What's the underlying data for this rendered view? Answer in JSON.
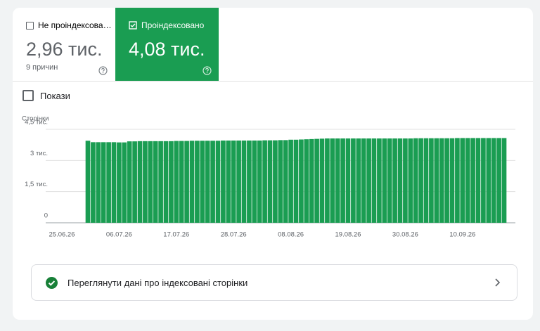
{
  "tabs": [
    {
      "label": "Не проіндексова…",
      "value": "2,96 тис.",
      "subtitle": "9 причин"
    },
    {
      "label": "Проіндексовано",
      "value": "4,08 тис."
    }
  ],
  "toggle": "Покази",
  "link": "Переглянути дані про індексовані сторінки",
  "chart_data": {
    "type": "bar",
    "y_label": "Сторінки",
    "color": "#1a9d52",
    "grid": true,
    "categories": [
      "25.06.26",
      null,
      null,
      null,
      null,
      null,
      null,
      null,
      null,
      null,
      null,
      "06.07.26",
      null,
      null,
      null,
      null,
      null,
      null,
      null,
      null,
      null,
      null,
      "17.07.26",
      null,
      null,
      null,
      null,
      null,
      null,
      null,
      null,
      null,
      null,
      "28.07.26",
      null,
      null,
      null,
      null,
      null,
      null,
      null,
      null,
      null,
      null,
      "08.08.26",
      null,
      null,
      null,
      null,
      null,
      null,
      null,
      null,
      null,
      null,
      "19.08.26",
      null,
      null,
      null,
      null,
      null,
      null,
      null,
      null,
      null,
      null,
      "30.08.26",
      null,
      null,
      null,
      null,
      null,
      null,
      null,
      null,
      null,
      null,
      "10.09.26",
      null,
      null,
      null,
      null,
      null,
      null,
      null,
      null
    ],
    "values": [
      null,
      null,
      null,
      null,
      null,
      3950,
      3880,
      3880,
      3880,
      3880,
      3880,
      3870,
      3870,
      3920,
      3920,
      3930,
      3930,
      3930,
      3930,
      3930,
      3930,
      3930,
      3940,
      3940,
      3940,
      3950,
      3950,
      3950,
      3950,
      3950,
      3950,
      3960,
      3960,
      3960,
      3960,
      3960,
      3960,
      3960,
      3960,
      3970,
      3970,
      3970,
      3980,
      3980,
      4000,
      4000,
      4010,
      4020,
      4030,
      4040,
      4050,
      4060,
      4060,
      4060,
      4060,
      4060,
      4060,
      4060,
      4060,
      4060,
      4060,
      4060,
      4060,
      4060,
      4060,
      4060,
      4060,
      4060,
      4070,
      4070,
      4070,
      4070,
      4070,
      4070,
      4070,
      4070,
      4080,
      4080,
      4080,
      4080,
      4080,
      4080,
      4080,
      4080,
      4080,
      4080
    ],
    "ylim": [
      0,
      4500
    ],
    "yticks": [
      0,
      {
        "value": 1500,
        "label": "1,5 тис."
      },
      {
        "value": 3000,
        "label": "3 тис."
      },
      {
        "value": 4500,
        "label": "4,5 тис."
      }
    ]
  }
}
